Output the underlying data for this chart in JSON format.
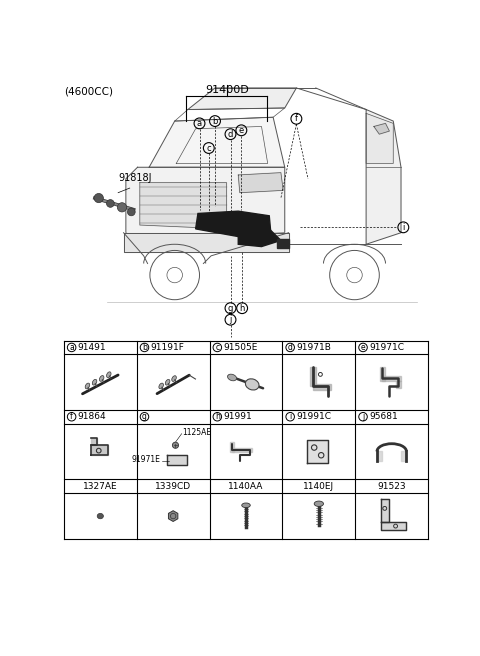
{
  "title_top_left": "(4600CC)",
  "main_part_label": "91400D",
  "side_label": "91818J",
  "bg_color": "#ffffff",
  "table_border_color": "#000000",
  "text_color": "#000000",
  "row1_cells": [
    {
      "letter": "a",
      "part": "91491"
    },
    {
      "letter": "b",
      "part": "91191F"
    },
    {
      "letter": "c",
      "part": "91505E"
    },
    {
      "letter": "d",
      "part": "91971B"
    },
    {
      "letter": "e",
      "part": "91971C"
    }
  ],
  "row2_cells": [
    {
      "letter": "f",
      "part": "91864"
    },
    {
      "letter": "g",
      "part": ""
    },
    {
      "letter": "h",
      "part": "91991"
    },
    {
      "letter": "i",
      "part": "91991C"
    },
    {
      "letter": "j",
      "part": "95681"
    }
  ],
  "fastener_labels": [
    "1327AE",
    "1339CD",
    "1140AA",
    "1140EJ",
    "91523"
  ],
  "g_sub_labels": [
    "1125AE",
    "91971E"
  ],
  "font_size_title": 7.5,
  "font_size_part_label": 8,
  "font_size_table_header": 7,
  "font_size_table_sub": 6
}
